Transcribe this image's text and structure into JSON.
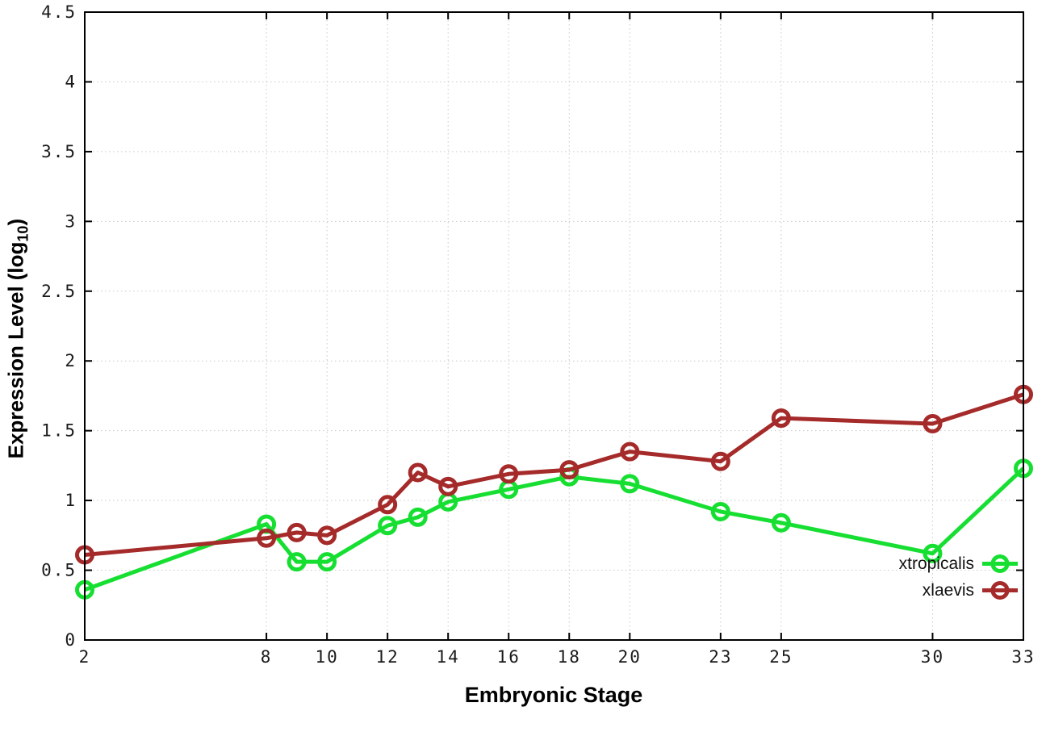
{
  "chart_data": {
    "type": "line",
    "title": "",
    "xlabel": "Embryonic Stage",
    "ylabel_prefix": "Expression Level (log",
    "ylabel_sub": "10",
    "ylabel_suffix": ")",
    "xlim": [
      2,
      33
    ],
    "ylim": [
      0,
      4.5
    ],
    "grid": "dotted",
    "legend_position": "inside-bottom-right",
    "x_tick_values": [
      2,
      8,
      10,
      12,
      14,
      16,
      18,
      20,
      23,
      25,
      30,
      33
    ],
    "x_tick_labels": [
      "2",
      "8",
      "10",
      "12",
      "14",
      "16",
      "18",
      "20",
      "23",
      "25",
      "30",
      "33"
    ],
    "y_tick_values": [
      0,
      0.5,
      1,
      1.5,
      2,
      2.5,
      3,
      3.5,
      4,
      4.5
    ],
    "y_tick_labels": [
      "0",
      "0.5",
      "1",
      "1.5",
      "2",
      "2.5",
      "3",
      "3.5",
      "4",
      "4.5"
    ],
    "x": [
      2,
      8,
      9,
      10,
      12,
      13,
      14,
      16,
      18,
      20,
      23,
      25,
      30,
      33
    ],
    "series": [
      {
        "name": "xtropicalis",
        "color": "#16DF32",
        "values": [
          0.36,
          0.83,
          0.56,
          0.56,
          0.82,
          0.88,
          0.99,
          1.08,
          1.17,
          1.12,
          0.92,
          0.84,
          0.62,
          1.23
        ]
      },
      {
        "name": "xlaevis",
        "color": "#A52A2A",
        "values": [
          0.61,
          0.73,
          0.77,
          0.75,
          0.97,
          1.2,
          1.1,
          1.19,
          1.22,
          1.35,
          1.28,
          1.59,
          1.55,
          1.76
        ]
      }
    ],
    "marker": "open-circle",
    "axis_color": "#000000",
    "grid_color": "#c9c9c9",
    "tick_label_color": "#1a1a1a"
  }
}
